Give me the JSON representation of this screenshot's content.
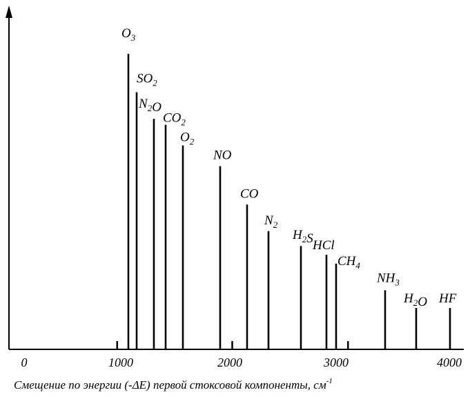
{
  "chart_data": {
    "type": "bar",
    "title": "",
    "xlabel": "Смещение по энергии (-ΔE) первой стоксовой компоненты, см",
    "xlabel_unit_superscript": "-1",
    "ylabel": "",
    "xlim": [
      0,
      4000
    ],
    "x_tick_labels": [
      "0",
      "1000",
      "2000",
      "3000",
      "4000"
    ],
    "x_ticks": [
      0,
      1000,
      2000,
      3000,
      4000
    ],
    "grid": false,
    "legend": "none",
    "series": [
      {
        "points": [
          {
            "x": 1043,
            "value": 100,
            "label": "O",
            "sub": "3"
          },
          {
            "x": 1124,
            "value": 87,
            "label": "SO",
            "sub": "2"
          },
          {
            "x": 1285,
            "value": 78,
            "label": "N2O",
            "sub": ""
          },
          {
            "x": 1388,
            "value": 76,
            "label": "CO",
            "sub": "2"
          },
          {
            "x": 1548,
            "value": 69,
            "label": "O",
            "sub": "2"
          },
          {
            "x": 1876,
            "value": 62,
            "label": "NO",
            "sub": ""
          },
          {
            "x": 2145,
            "value": 49,
            "label": "CO",
            "sub": ""
          },
          {
            "x": 2331,
            "value": 40,
            "label": "N",
            "sub": "2"
          },
          {
            "x": 2611,
            "value": 35,
            "label": "H2S",
            "sub": ""
          },
          {
            "x": 2886,
            "value": 32,
            "label": "HCl",
            "sub": ""
          },
          {
            "x": 2978,
            "value": 29,
            "label": "CH",
            "sub": "4"
          },
          {
            "x": 3420,
            "value": 20,
            "label": "NH",
            "sub": "3"
          },
          {
            "x": 3657,
            "value": 14,
            "label": "H2O",
            "sub": ""
          },
          {
            "x": 4000,
            "value": 14,
            "label": "HF",
            "sub": ""
          }
        ]
      }
    ]
  }
}
